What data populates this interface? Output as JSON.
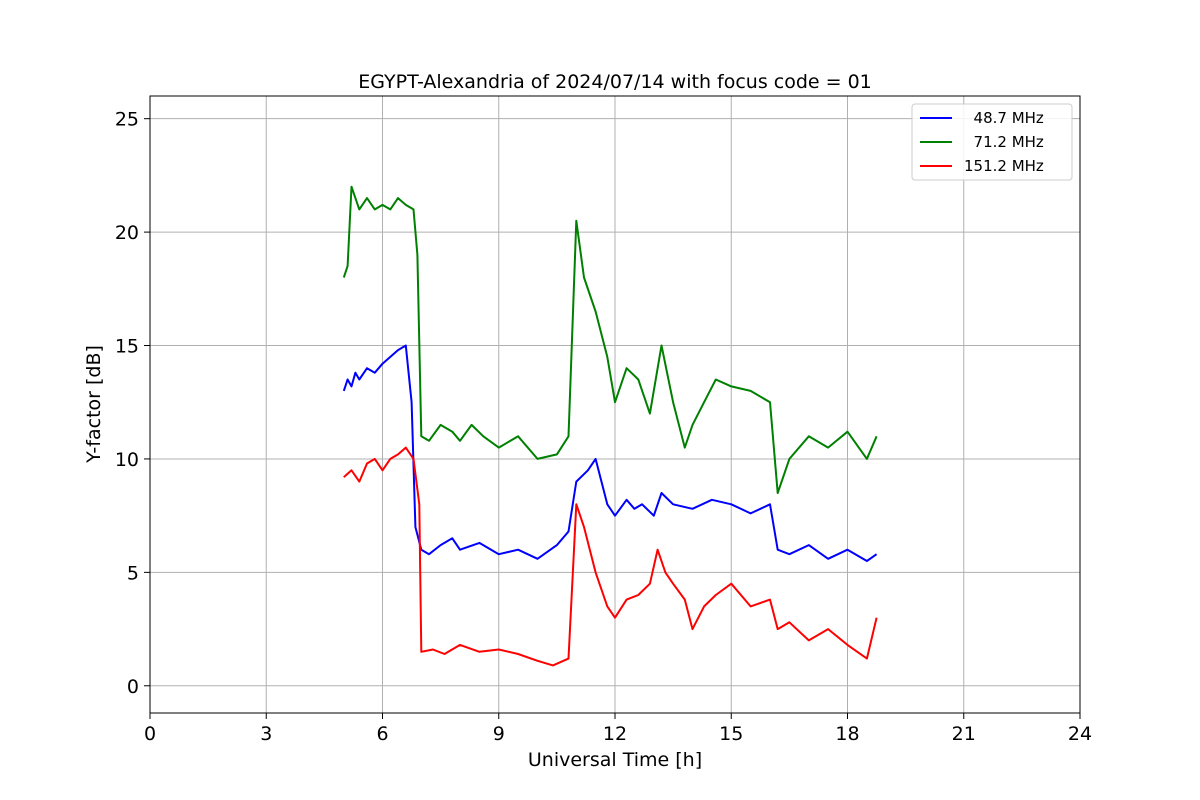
{
  "chart_data": {
    "type": "line",
    "title": "EGYPT-Alexandria of 2024/07/14 with focus code = 01",
    "xlabel": "Universal Time [h]",
    "ylabel": "Y-factor [dB]",
    "xlim": [
      0,
      24
    ],
    "ylim": [
      -1.2,
      26
    ],
    "xticks": [
      0,
      3,
      6,
      9,
      12,
      15,
      18,
      21,
      24
    ],
    "yticks": [
      0,
      5,
      10,
      15,
      20,
      25
    ],
    "grid": true,
    "legend_position": "top-right",
    "series": [
      {
        "name": "  48.7 MHz",
        "color": "#0000ff",
        "x": [
          5.0,
          5.1,
          5.2,
          5.3,
          5.4,
          5.6,
          5.8,
          6.0,
          6.2,
          6.4,
          6.6,
          6.75,
          6.85,
          7.0,
          7.2,
          7.5,
          7.8,
          8.0,
          8.5,
          9.0,
          9.5,
          10.0,
          10.5,
          10.8,
          11.0,
          11.3,
          11.5,
          11.8,
          12.0,
          12.3,
          12.5,
          12.7,
          13.0,
          13.2,
          13.5,
          14.0,
          14.5,
          15.0,
          15.5,
          16.0,
          16.2,
          16.5,
          17.0,
          17.5,
          18.0,
          18.5,
          18.75
        ],
        "y": [
          13.0,
          13.5,
          13.2,
          13.8,
          13.5,
          14.0,
          13.8,
          14.2,
          14.5,
          14.8,
          15.0,
          12.5,
          7.0,
          6.0,
          5.8,
          6.2,
          6.5,
          6.0,
          6.3,
          5.8,
          6.0,
          5.6,
          6.2,
          6.8,
          9.0,
          9.5,
          10.0,
          8.0,
          7.5,
          8.2,
          7.8,
          8.0,
          7.5,
          8.5,
          8.0,
          7.8,
          8.2,
          8.0,
          7.6,
          8.0,
          6.0,
          5.8,
          6.2,
          5.6,
          6.0,
          5.5,
          5.8
        ]
      },
      {
        "name": "  71.2 MHz",
        "color": "#008000",
        "x": [
          5.0,
          5.1,
          5.2,
          5.4,
          5.6,
          5.8,
          6.0,
          6.2,
          6.4,
          6.6,
          6.8,
          6.9,
          7.0,
          7.2,
          7.5,
          7.8,
          8.0,
          8.3,
          8.6,
          9.0,
          9.5,
          10.0,
          10.5,
          10.8,
          11.0,
          11.2,
          11.5,
          11.8,
          12.0,
          12.3,
          12.6,
          12.9,
          13.2,
          13.5,
          13.8,
          14.0,
          14.3,
          14.6,
          15.0,
          15.5,
          16.0,
          16.2,
          16.5,
          17.0,
          17.5,
          18.0,
          18.5,
          18.75
        ],
        "y": [
          18.0,
          18.5,
          22.0,
          21.0,
          21.5,
          21.0,
          21.2,
          21.0,
          21.5,
          21.2,
          21.0,
          19.0,
          11.0,
          10.8,
          11.5,
          11.2,
          10.8,
          11.5,
          11.0,
          10.5,
          11.0,
          10.0,
          10.2,
          11.0,
          20.5,
          18.0,
          16.5,
          14.5,
          12.5,
          14.0,
          13.5,
          12.0,
          15.0,
          12.5,
          10.5,
          11.5,
          12.5,
          13.5,
          13.2,
          13.0,
          12.5,
          8.5,
          10.0,
          11.0,
          10.5,
          11.2,
          10.0,
          11.0
        ]
      },
      {
        "name": "151.2 MHz",
        "color": "#ff0000",
        "x": [
          5.0,
          5.2,
          5.4,
          5.6,
          5.8,
          6.0,
          6.2,
          6.4,
          6.6,
          6.8,
          6.95,
          7.0,
          7.3,
          7.6,
          8.0,
          8.5,
          9.0,
          9.5,
          10.0,
          10.4,
          10.8,
          11.0,
          11.2,
          11.5,
          11.8,
          12.0,
          12.3,
          12.6,
          12.9,
          13.1,
          13.3,
          13.5,
          13.8,
          14.0,
          14.3,
          14.6,
          15.0,
          15.5,
          16.0,
          16.2,
          16.5,
          17.0,
          17.5,
          18.0,
          18.5,
          18.75
        ],
        "y": [
          9.2,
          9.5,
          9.0,
          9.8,
          10.0,
          9.5,
          10.0,
          10.2,
          10.5,
          10.0,
          8.0,
          1.5,
          1.6,
          1.4,
          1.8,
          1.5,
          1.6,
          1.4,
          1.1,
          0.9,
          1.2,
          8.0,
          7.0,
          5.0,
          3.5,
          3.0,
          3.8,
          4.0,
          4.5,
          6.0,
          5.0,
          4.5,
          3.8,
          2.5,
          3.5,
          4.0,
          4.5,
          3.5,
          3.8,
          2.5,
          2.8,
          2.0,
          2.5,
          1.8,
          1.2,
          3.0
        ]
      }
    ]
  }
}
